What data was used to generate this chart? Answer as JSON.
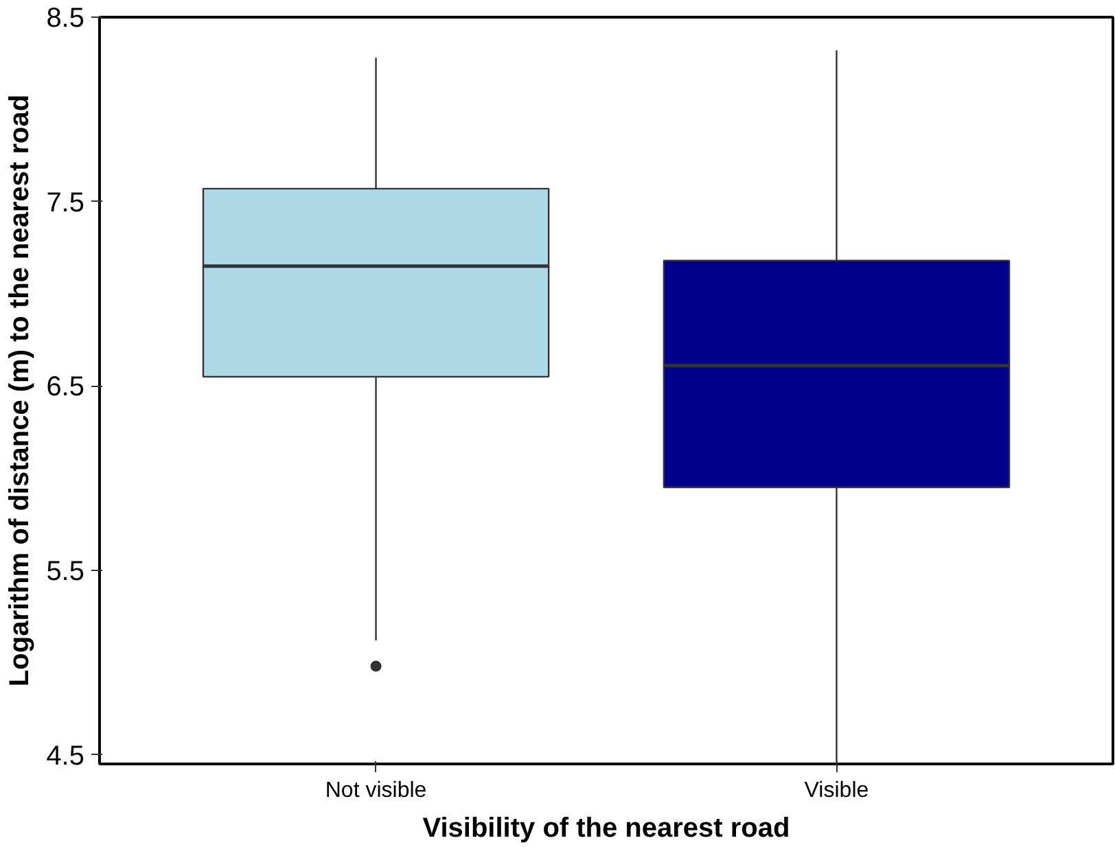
{
  "chart_data": {
    "type": "box",
    "xlabel": "Visibility of the nearest road",
    "ylabel": "Logarithm of distance (m) to the nearest road",
    "categories": [
      "Not visible",
      "Visible"
    ],
    "colors": [
      "#add8e6",
      "#00008b"
    ],
    "boxes": [
      {
        "low": 5.12,
        "q1": 6.55,
        "median": 7.15,
        "q3": 7.57,
        "high": 8.28,
        "outliers": [
          4.98
        ]
      },
      {
        "low": 4.46,
        "q1": 5.95,
        "median": 6.61,
        "q3": 7.18,
        "high": 8.32
      }
    ],
    "ylim": [
      4.45,
      8.5
    ],
    "yticks": [
      4.5,
      5.5,
      6.5,
      7.5,
      8.5
    ]
  }
}
